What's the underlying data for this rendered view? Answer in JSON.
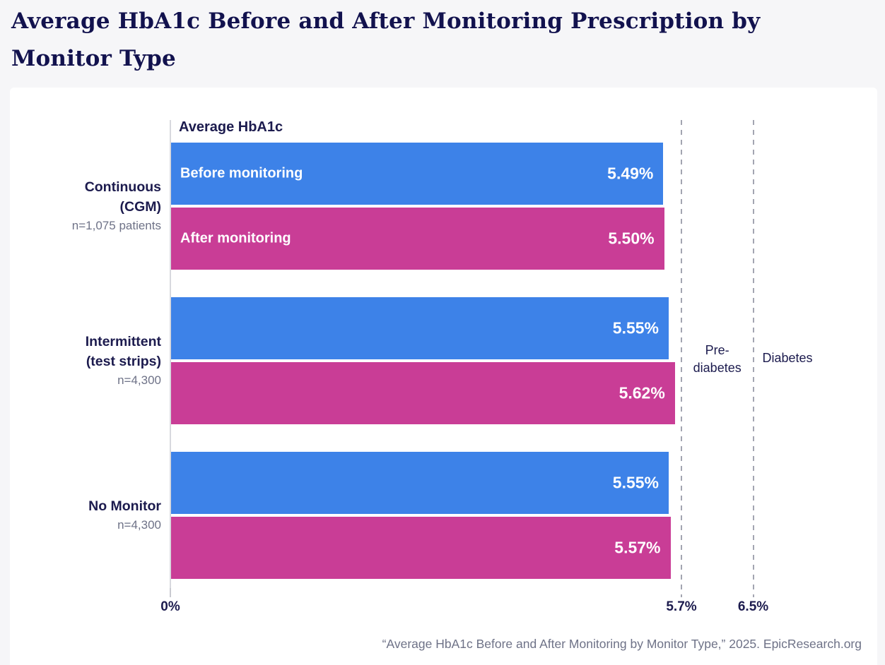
{
  "page": {
    "title_line1": "Average HbA1c Before and After Monitoring Prescription by",
    "title_line2": "Monitor Type"
  },
  "chart_data": {
    "type": "bar",
    "orientation": "horizontal",
    "title": "Average HbA1c Before and After Monitoring Prescription by Monitor Type",
    "axis_title": "Average HbA1c",
    "xlim": [
      0,
      7.9
    ],
    "x_ticks": [
      {
        "value": 0,
        "label": "0%"
      },
      {
        "value": 5.7,
        "label": "5.7%"
      },
      {
        "value": 6.5,
        "label": "6.5%"
      }
    ],
    "reference_lines": [
      {
        "value": 5.7,
        "label": "Pre-diabetes"
      },
      {
        "value": 6.5,
        "label": "Diabetes"
      }
    ],
    "series_names": [
      "Before monitoring",
      "After monitoring"
    ],
    "colors": {
      "before": "#3d82e8",
      "after": "#c93d96"
    },
    "groups": [
      {
        "label_lines": [
          "Continuous",
          "(CGM)"
        ],
        "n_label": "n=1,075 patients",
        "before": 5.49,
        "after": 5.5,
        "before_label": "5.49%",
        "after_label": "5.50%"
      },
      {
        "label_lines": [
          "Intermittent",
          "(test strips)"
        ],
        "n_label": "n=4,300",
        "before": 5.55,
        "after": 5.62,
        "before_label": "5.55%",
        "after_label": "5.62%"
      },
      {
        "label_lines": [
          "No Monitor"
        ],
        "n_label": "n=4,300",
        "before": 5.55,
        "after": 5.57,
        "before_label": "5.55%",
        "after_label": "5.57%"
      }
    ]
  },
  "footer": {
    "citation": "“Average HbA1c Before and After Monitoring by Monitor Type,” 2025. EpicResearch.org"
  }
}
